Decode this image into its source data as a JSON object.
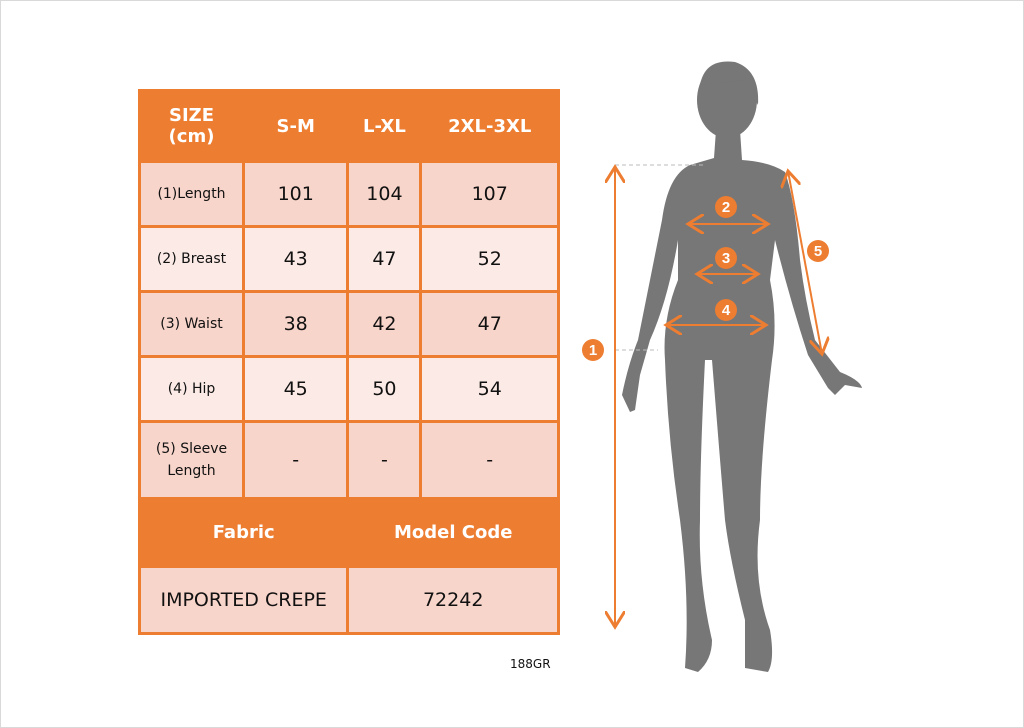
{
  "table": {
    "header": [
      "SIZE\n(cm)",
      "S-M",
      "L-XL",
      "2XL-3XL"
    ],
    "header_line1": "SIZE",
    "header_line2": "(cm)",
    "rows": [
      {
        "label": "(1)Length",
        "values": [
          "101",
          "104",
          "107"
        ]
      },
      {
        "label": "(2) Breast",
        "values": [
          "43",
          "47",
          "52"
        ]
      },
      {
        "label": "(3) Waist",
        "values": [
          "38",
          "42",
          "47"
        ]
      },
      {
        "label": "(4) Hip",
        "values": [
          "45",
          "50",
          "54"
        ]
      },
      {
        "label": "(5) Sleeve Length",
        "values": [
          "-",
          "-",
          "-"
        ]
      }
    ],
    "footer_headers": [
      "Fabric",
      "Model Code"
    ],
    "footer_values": [
      "IMPORTED CREPE",
      "72242"
    ]
  },
  "note": "188GR",
  "markers": [
    "1",
    "2",
    "3",
    "4",
    "5"
  ],
  "colors": {
    "accent": "#ed7d31",
    "row_dark": "#f8d5cb",
    "row_light": "#fbeae5",
    "silhouette": "#777777"
  }
}
